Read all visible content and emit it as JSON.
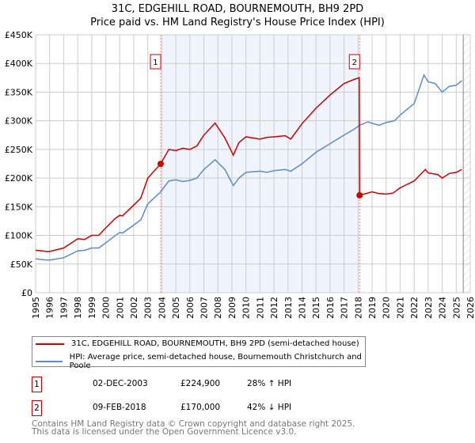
{
  "title": "31C, EDGEHILL ROAD, BOURNEMOUTH, BH9 2PD",
  "subtitle": "Price paid vs. HM Land Registry's House Price Index (HPI)",
  "chart_data": {
    "type": "line",
    "xlim": [
      1995,
      2026
    ],
    "ylim": [
      0,
      450000
    ],
    "y_ticks": [
      0,
      50000,
      100000,
      150000,
      200000,
      250000,
      300000,
      350000,
      400000,
      450000
    ],
    "y_tick_labels": [
      "£0",
      "£50K",
      "£100K",
      "£150K",
      "£200K",
      "£250K",
      "£300K",
      "£350K",
      "£400K",
      "£450K"
    ],
    "x_ticks": [
      "1995",
      "1996",
      "1997",
      "1998",
      "1999",
      "2000",
      "2001",
      "2002",
      "2003",
      "2004",
      "2005",
      "2006",
      "2007",
      "2008",
      "2009",
      "2010",
      "2011",
      "2012",
      "2013",
      "2014",
      "2015",
      "2016",
      "2017",
      "2018",
      "2019",
      "2020",
      "2021",
      "2022",
      "2023",
      "2024",
      "2025",
      "2026"
    ],
    "grid": true,
    "series": [
      {
        "name": "31C, EDGEHILL ROAD, BOURNEMOUTH, BH9 2PD (semi-detached house)",
        "color": "#cc0000",
        "x": [
          1995,
          1995.8,
          1996,
          1997,
          1998,
          1998.5,
          1999,
          1999.5,
          2000,
          2000.7,
          2001,
          2001.2,
          2002,
          2002.5,
          2003,
          2003.92,
          2004.5,
          2005,
          2005.5,
          2006,
          2006.5,
          2007,
          2007.8,
          2008.5,
          2009.1,
          2009.5,
          2010,
          2011,
          2011.5,
          2012,
          2012.8,
          2013.2,
          2014,
          2015,
          2016,
          2017,
          2017.7,
          2018.08,
          2018.11,
          2019,
          2019.5,
          2020,
          2020.5,
          2021,
          2022,
          2022.8,
          2023,
          2023.7,
          2024,
          2024.5,
          2025,
          2025.4
        ],
        "y": [
          74000,
          72000,
          72000,
          78000,
          94000,
          93000,
          100000,
          100000,
          113000,
          130000,
          135000,
          134000,
          153000,
          165000,
          200000,
          224900,
          250000,
          248000,
          252000,
          250000,
          256000,
          275000,
          296000,
          270000,
          240000,
          262000,
          272000,
          268000,
          271000,
          272000,
          274000,
          268000,
          295000,
          322000,
          345000,
          365000,
          372000,
          375000,
          170000,
          176000,
          173000,
          172000,
          174000,
          183000,
          195000,
          215000,
          209000,
          206000,
          200000,
          208000,
          210000,
          215000
        ]
      },
      {
        "name": "HPI: Average price, semi-detached house, Bournemouth Christchurch and Poole",
        "color": "#5b8bd0",
        "x": [
          1995,
          1995.8,
          1996,
          1997,
          1998,
          1998.5,
          1999,
          1999.5,
          2000,
          2000.7,
          2001,
          2001.2,
          2002,
          2002.5,
          2003,
          2003.92,
          2004.5,
          2005,
          2005.5,
          2006,
          2006.5,
          2007,
          2007.8,
          2008.5,
          2009.1,
          2009.5,
          2010,
          2011,
          2011.5,
          2012,
          2012.8,
          2013.2,
          2014,
          2015,
          2016,
          2017,
          2017.7,
          2018.1,
          2018.7,
          2019.5,
          2020,
          2020.6,
          2021,
          2022,
          2022.7,
          2023,
          2023.5,
          2024,
          2024.5,
          2025,
          2025.4
        ],
        "y": [
          59000,
          57000,
          57000,
          61000,
          73000,
          74000,
          78000,
          78000,
          87000,
          100000,
          105000,
          104000,
          118000,
          127000,
          155000,
          176000,
          195000,
          197000,
          194000,
          196000,
          200000,
          215000,
          232000,
          215000,
          187000,
          200000,
          210000,
          212000,
          210000,
          213000,
          215000,
          212000,
          225000,
          245000,
          260000,
          275000,
          285000,
          292000,
          298000,
          292000,
          297000,
          300000,
          310000,
          330000,
          380000,
          368000,
          365000,
          350000,
          360000,
          362000,
          370000
        ]
      }
    ],
    "annotations": [
      {
        "label": "1",
        "x": 2003.92,
        "y": 224900
      },
      {
        "label": "2",
        "x": 2018.11,
        "y": 170000
      }
    ],
    "legend_position": "bottom"
  },
  "legend": [
    "31C, EDGEHILL ROAD, BOURNEMOUTH, BH9 2PD (semi-detached house)",
    "HPI: Average price, semi-detached house, Bournemouth Christchurch and Poole"
  ],
  "sales": [
    {
      "n": "1",
      "date": "02-DEC-2003",
      "price": "£224,900",
      "hpi": "28% ↑ HPI"
    },
    {
      "n": "2",
      "date": "09-FEB-2018",
      "price": "£170,000",
      "hpi": "42% ↓ HPI"
    }
  ],
  "footer": [
    "Contains HM Land Registry data © Crown copyright and database right 2025.",
    "This data is licensed under the Open Government Licence v3.0."
  ]
}
